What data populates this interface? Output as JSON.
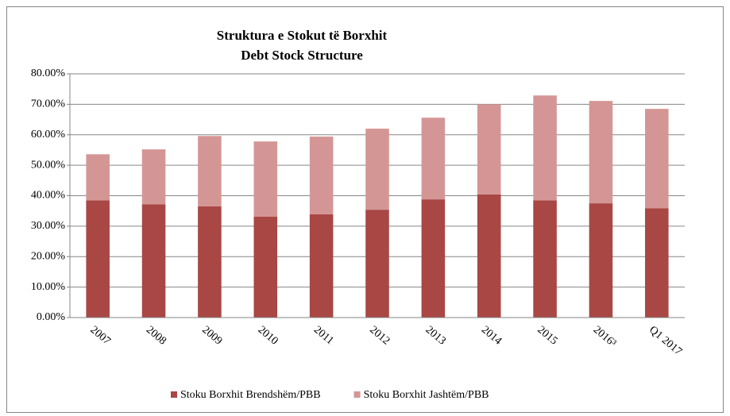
{
  "chart_data": {
    "type": "stacked_bar",
    "title": "Struktura e Stokut të Borxhit",
    "subtitle": "Debt Stock Structure",
    "categories": [
      "2007",
      "2008",
      "2009",
      "2010",
      "2011",
      "2012",
      "2013",
      "2014",
      "2015",
      "2016³",
      "Q1 2017"
    ],
    "series": [
      {
        "name": "Stoku Borxhit Brendshëm/PBB",
        "color": "#a94744",
        "values": [
          38.5,
          37.2,
          36.5,
          33.1,
          33.9,
          35.4,
          38.8,
          40.4,
          38.5,
          37.5,
          35.9
        ]
      },
      {
        "name": "Stoku Borxhit Jashtëm/PBB",
        "color": "#d49695",
        "values": [
          15.1,
          18.0,
          23.1,
          24.7,
          25.5,
          26.6,
          26.8,
          29.6,
          34.4,
          33.6,
          32.6
        ]
      }
    ],
    "ylim": [
      0,
      80
    ],
    "yticks": [
      {
        "value": 0,
        "label": "0.00%"
      },
      {
        "value": 10,
        "label": "10.00%"
      },
      {
        "value": 20,
        "label": "20.00%"
      },
      {
        "value": 30,
        "label": "30.00%"
      },
      {
        "value": 40,
        "label": "40.00%"
      },
      {
        "value": 50,
        "label": "50.00%"
      },
      {
        "value": 60,
        "label": "60.00%"
      },
      {
        "value": 70,
        "label": "70.00%"
      },
      {
        "value": 80,
        "label": "80.00%"
      }
    ],
    "grid": true,
    "legend": "bottom"
  }
}
